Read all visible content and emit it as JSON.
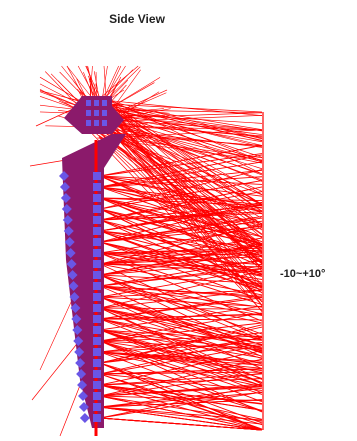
{
  "title": "Side View",
  "angle_label": "-10~+10°",
  "colors": {
    "ray": "#ff0000",
    "mount": "#8b1a6b",
    "element": "#6a56e6",
    "background": "#ffffff"
  },
  "element_count": 23
}
